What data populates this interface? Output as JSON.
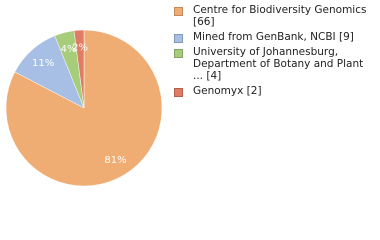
{
  "chart_data": {
    "type": "pie",
    "series": [
      {
        "name": "Centre for Biodiversity Genomics [66]",
        "color": "#f0ad73"
      },
      {
        "name": "Mined from GenBank, NCBI [9]",
        "color": "#a7bfe4"
      },
      {
        "name": "University of Johannesburg, Department of Botany and Plant ... [4]",
        "color": "#a7cd7b"
      },
      {
        "name": "Genomyx [2]",
        "color": "#e07b64"
      }
    ],
    "values": [
      81,
      11,
      4,
      2
    ],
    "value_labels": [
      "81%",
      "11%",
      "4%",
      "2%"
    ]
  }
}
